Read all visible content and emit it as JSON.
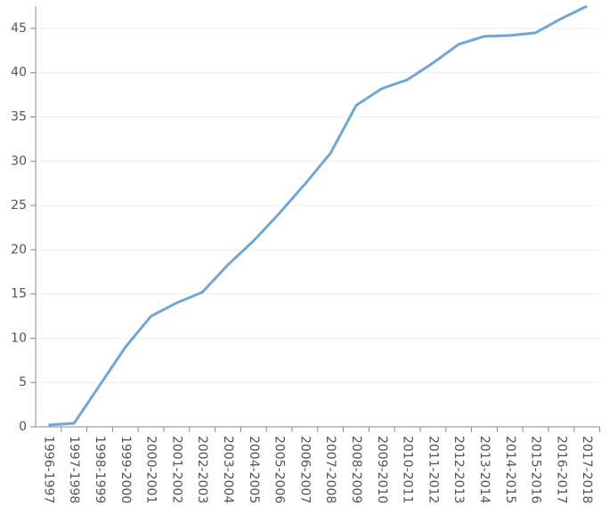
{
  "chart_data": {
    "type": "line",
    "categories": [
      "1996-1997",
      "1997-1998",
      "1998-1999",
      "1999-2000",
      "2000-2001",
      "2001-2002",
      "2002-2003",
      "2003-2004",
      "2004-2005",
      "2005-2006",
      "2006-2007",
      "2007-2008",
      "2008-2009",
      "2009-2010",
      "2010-2011",
      "2011-2012",
      "2012-2013",
      "2013-2014",
      "2014-2015",
      "2015-2016",
      "2016-2017",
      "2017-2018"
    ],
    "values": [
      0.2,
      0.4,
      4.7,
      9.0,
      12.5,
      14.0,
      15.2,
      18.3,
      21.0,
      24.1,
      27.4,
      30.9,
      36.3,
      38.2,
      39.2,
      41.1,
      43.2,
      44.1,
      44.2,
      44.5,
      46.1,
      47.5
    ],
    "color": "#70a6d5",
    "ylim": [
      0,
      47.5
    ],
    "yticks": [
      0,
      5,
      10,
      15,
      20,
      25,
      30,
      35,
      40,
      45
    ],
    "grid": true
  }
}
